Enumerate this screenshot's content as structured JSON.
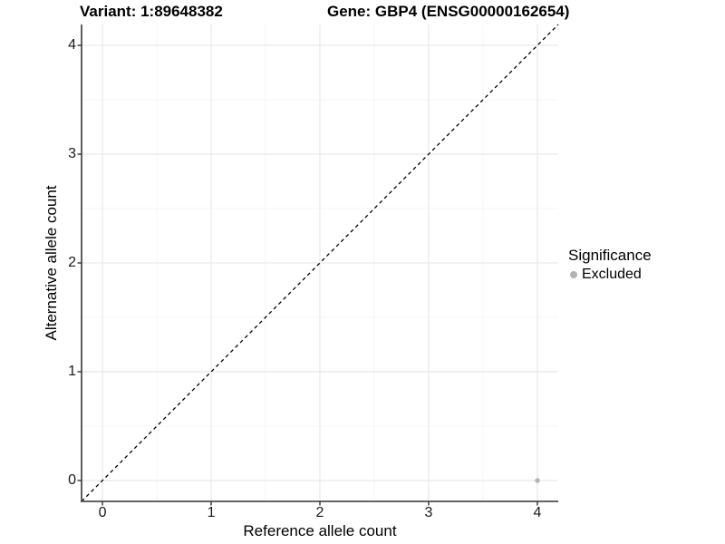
{
  "chart_data": {
    "type": "scatter",
    "titles": {
      "left": "Variant: 1:89648382",
      "right": "Gene: GBP4 (ENSG00000162654)"
    },
    "xlabel": "Reference allele count",
    "ylabel": "Alternative allele count",
    "xlim": [
      -0.192,
      4.192
    ],
    "ylim": [
      -0.192,
      4.192
    ],
    "x_ticks": [
      0,
      1,
      2,
      3,
      4
    ],
    "y_ticks": [
      0,
      1,
      2,
      3,
      4
    ],
    "grid": "major and minor gridlines, white panel background",
    "legend_position": "right-center",
    "legend": {
      "title": "Significance",
      "items": [
        {
          "label": "Excluded",
          "color": "#b3b3b3"
        }
      ]
    },
    "series": [
      {
        "name": "Excluded",
        "color": "#b3b3b3",
        "marker": "circle",
        "points": [
          {
            "x": 4,
            "y": 0
          }
        ]
      }
    ],
    "reference_line": {
      "kind": "identity y = x",
      "style": "dashed",
      "color": "#000000"
    }
  },
  "colors": {
    "background": "#ffffff",
    "grid_major": "#e6e6e6",
    "grid_minor": "#f2f2f2",
    "axis_line": "#4d4d4d",
    "tick_mark": "#333333",
    "title_text": "#000000",
    "excluded": "#b3b3b3"
  }
}
